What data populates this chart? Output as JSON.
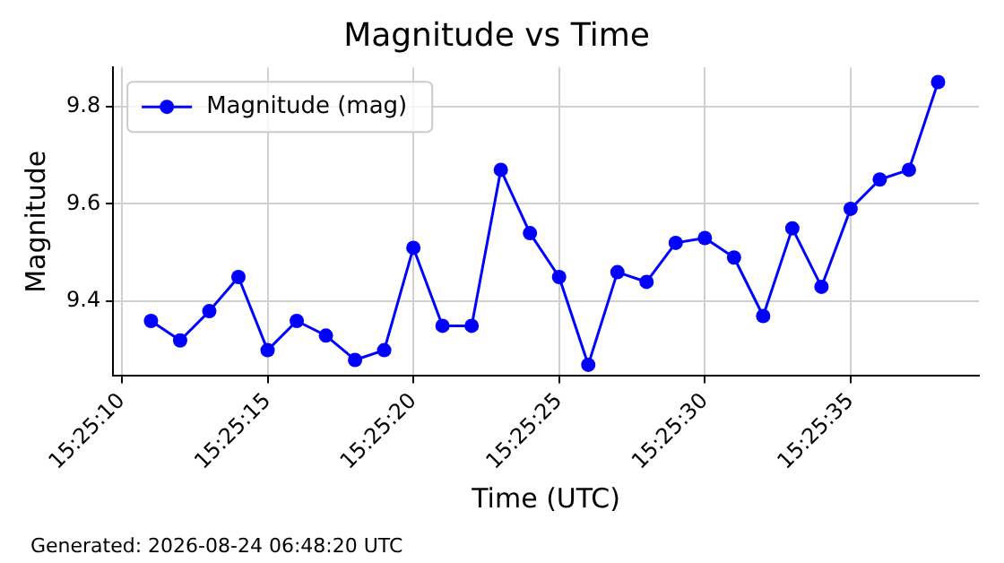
{
  "chart_data": {
    "type": "line",
    "title": "Magnitude vs Time",
    "xlabel": "Time (UTC)",
    "ylabel": "Magnitude",
    "x": [
      "2026-08-24T15:25:11",
      "2026-08-24T15:25:12",
      "2026-08-24T15:25:13",
      "2026-08-24T15:25:14",
      "2026-08-24T15:25:15",
      "2026-08-24T15:25:16",
      "2026-08-24T15:25:17",
      "2026-08-24T15:25:18",
      "2026-08-24T15:25:19",
      "2026-08-24T15:25:20",
      "2026-08-24T15:25:21",
      "2026-08-24T15:25:22",
      "2026-08-24T15:25:23",
      "2026-08-24T15:25:24",
      "2026-08-24T15:25:25",
      "2026-08-24T15:25:26",
      "2026-08-24T15:25:27",
      "2026-08-24T15:25:28",
      "2026-08-24T15:25:29",
      "2026-08-24T15:25:30",
      "2026-08-24T15:25:31",
      "2026-08-24T15:25:32",
      "2026-08-24T15:25:33",
      "2026-08-24T15:25:34",
      "2026-08-24T15:25:35",
      "2026-08-24T15:25:36",
      "2026-08-24T15:25:37",
      "2026-08-24T15:25:38"
    ],
    "series": [
      {
        "name": "Magnitude (mag)",
        "color": "#0000ff",
        "values": [
          9.36,
          9.32,
          9.38,
          9.45,
          9.3,
          9.36,
          9.33,
          9.28,
          9.3,
          9.51,
          9.35,
          9.35,
          9.67,
          9.54,
          9.45,
          9.27,
          9.46,
          9.44,
          9.52,
          9.53,
          9.49,
          9.37,
          9.55,
          9.43,
          9.59,
          9.65,
          9.67,
          9.85
        ]
      }
    ],
    "xlim": [
      "2026-08-24T15:25:09.7",
      "2026-08-24T15:25:39.4"
    ],
    "xticks": [
      {
        "value": "2026-08-24T15:25:10",
        "label": "15:25:10"
      },
      {
        "value": "2026-08-24T15:25:15",
        "label": "15:25:15"
      },
      {
        "value": "2026-08-24T15:25:20",
        "label": "15:25:20"
      },
      {
        "value": "2026-08-24T15:25:25",
        "label": "15:25:25"
      },
      {
        "value": "2026-08-24T15:25:30",
        "label": "15:25:30"
      },
      {
        "value": "2026-08-24T15:25:35",
        "label": "15:25:35"
      }
    ],
    "ylim": [
      9.247,
      9.88
    ],
    "yticks": [
      {
        "value": 9.4,
        "label": "9.4"
      },
      {
        "value": 9.6,
        "label": "9.6"
      },
      {
        "value": 9.8,
        "label": "9.8"
      }
    ],
    "grid": true,
    "legend": "top left",
    "marker": "circle",
    "line_style": "solid",
    "annotations": [
      "Generated: 2026-08-24 06:48:20 UTC"
    ]
  }
}
